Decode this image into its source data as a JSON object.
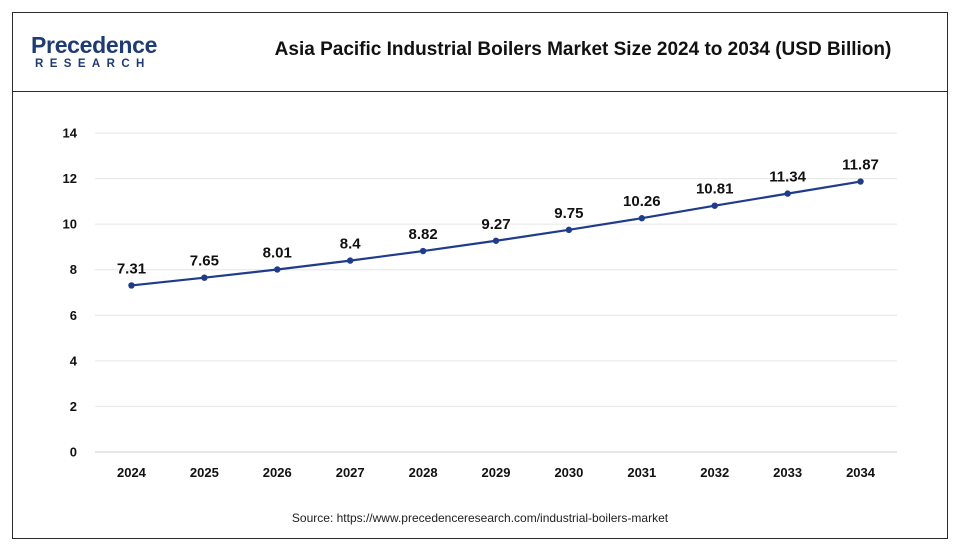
{
  "header": {
    "logo_word": "Precedence",
    "logo_sub": "RESEARCH",
    "title": "Asia Pacific Industrial Boilers Market Size 2024 to 2034 (USD Billion)"
  },
  "source": "Source: https://www.precedenceresearch.com/industrial-boilers-market",
  "colors": {
    "line": "#1f3b8c",
    "point": "#1f3b8c",
    "brand": "#1f3b73"
  },
  "chart_data": {
    "type": "line",
    "title": "Asia Pacific Industrial Boilers Market Size 2024 to 2034 (USD Billion)",
    "xlabel": "",
    "ylabel": "",
    "categories": [
      "2024",
      "2025",
      "2026",
      "2027",
      "2028",
      "2029",
      "2030",
      "2031",
      "2032",
      "2033",
      "2034"
    ],
    "series": [
      {
        "values": [
          7.31,
          7.65,
          8.01,
          8.4,
          8.82,
          9.27,
          9.75,
          10.26,
          10.81,
          11.34,
          11.87
        ]
      }
    ],
    "data_labels": [
      "7.31",
      "7.65",
      "8.01",
      "8.4",
      "8.82",
      "9.27",
      "9.75",
      "10.26",
      "10.81",
      "11.34",
      "11.87"
    ],
    "y_ticks": [
      0,
      2,
      4,
      6,
      8,
      10,
      12,
      14
    ],
    "ylim": [
      0,
      14
    ],
    "grid": "horizontal",
    "legend": "none"
  }
}
